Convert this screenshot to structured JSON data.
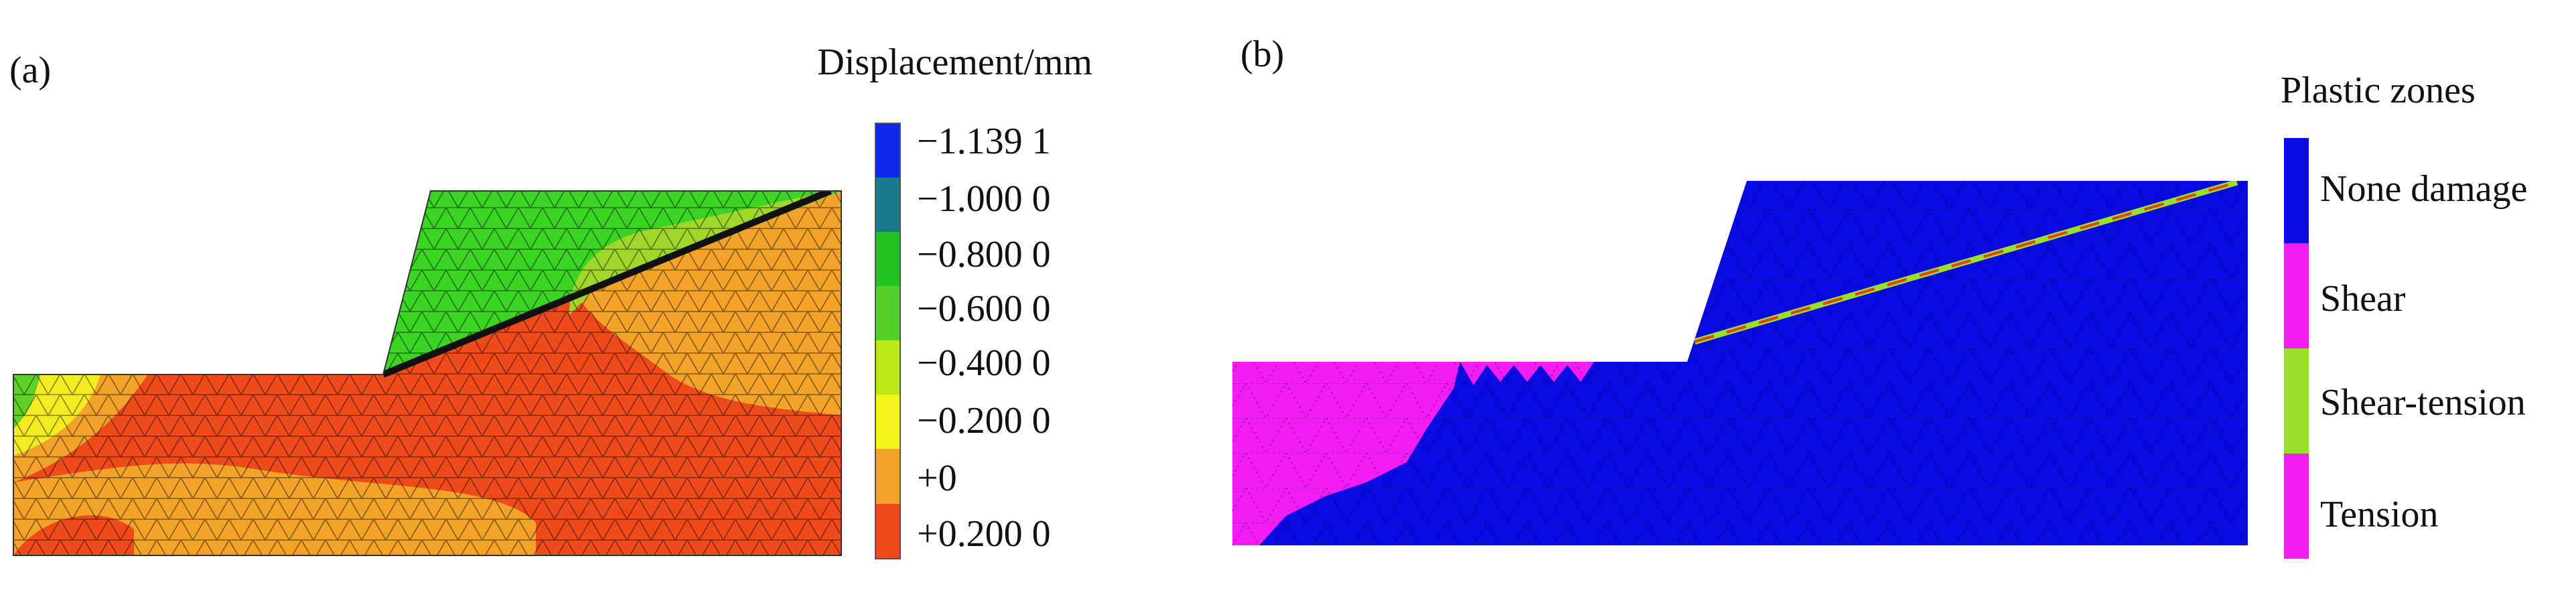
{
  "panel_a": {
    "label": "(a)",
    "title": "Displacement/mm",
    "legend": [
      "−1.139 1",
      "−1.000 0",
      "−0.800 0",
      "−0.600 0",
      "−0.400 0",
      "−0.200 0",
      "+0",
      "+0.200 0"
    ]
  },
  "panel_b": {
    "label": "(b)",
    "title": "Plastic zones",
    "legend": [
      "None damage",
      "Shear",
      "Shear-tension",
      "Tension"
    ]
  }
}
